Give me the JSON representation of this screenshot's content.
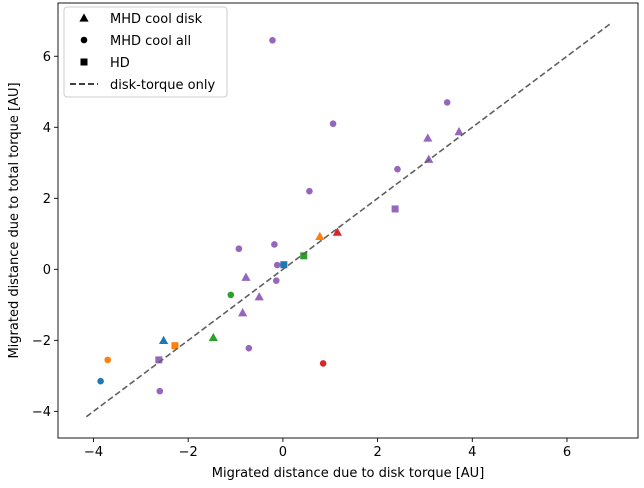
{
  "chart_data": {
    "type": "scatter",
    "xlabel": "Migrated distance due to disk torque [AU]",
    "ylabel": "Migrated distance due to total torque [AU]",
    "xlim": [
      -4.75,
      7.5
    ],
    "ylim": [
      -4.75,
      7.5
    ],
    "xticks": [
      -4,
      -2,
      0,
      2,
      4,
      6
    ],
    "yticks": [
      -4,
      -2,
      0,
      2,
      4,
      6
    ],
    "xtick_labels": [
      "−4",
      "−2",
      "0",
      "2",
      "4",
      "6"
    ],
    "ytick_labels": [
      "−4",
      "−2",
      "0",
      "2",
      "4",
      "6"
    ],
    "grid": false,
    "legend_position": "upper-left",
    "legend": [
      {
        "label": "MHD cool disk",
        "marker": "triangle"
      },
      {
        "label": "MHD cool all",
        "marker": "circle"
      },
      {
        "label": "HD",
        "marker": "square"
      },
      {
        "label": "disk-torque only",
        "marker": "dashed-line"
      }
    ],
    "reference_line": {
      "x": [
        -4.15,
        6.95
      ],
      "y": [
        -4.15,
        6.95
      ],
      "style": "dashed",
      "color": "#606060"
    },
    "points": [
      {
        "marker": "circle",
        "color": "#9467bd",
        "x": -0.22,
        "y": 6.45
      },
      {
        "marker": "circle",
        "color": "#9467bd",
        "x": 3.47,
        "y": 4.7
      },
      {
        "marker": "circle",
        "color": "#9467bd",
        "x": 1.06,
        "y": 4.1
      },
      {
        "marker": "circle",
        "color": "#9467bd",
        "x": 2.42,
        "y": 2.82
      },
      {
        "marker": "circle",
        "color": "#9467bd",
        "x": 0.56,
        "y": 2.2
      },
      {
        "marker": "circle",
        "color": "#9467bd",
        "x": -0.93,
        "y": 0.58
      },
      {
        "marker": "circle",
        "color": "#9467bd",
        "x": -0.18,
        "y": 0.7
      },
      {
        "marker": "circle",
        "color": "#9467bd",
        "x": -0.12,
        "y": 0.12
      },
      {
        "marker": "circle",
        "color": "#9467bd",
        "x": -0.14,
        "y": -0.32
      },
      {
        "marker": "circle",
        "color": "#9467bd",
        "x": -0.72,
        "y": -2.22
      },
      {
        "marker": "circle",
        "color": "#9467bd",
        "x": -2.6,
        "y": -3.43
      },
      {
        "marker": "circle",
        "color": "#2ca02c",
        "x": -1.1,
        "y": -0.72
      },
      {
        "marker": "circle",
        "color": "#ff7f0e",
        "x": -3.7,
        "y": -2.55
      },
      {
        "marker": "circle",
        "color": "#1f77b4",
        "x": -3.85,
        "y": -3.15
      },
      {
        "marker": "circle",
        "color": "#d62728",
        "x": 0.85,
        "y": -2.65
      },
      {
        "marker": "triangle",
        "color": "#9467bd",
        "x": 3.72,
        "y": 3.88
      },
      {
        "marker": "triangle",
        "color": "#9467bd",
        "x": 3.06,
        "y": 3.7
      },
      {
        "marker": "triangle",
        "color": "#9467bd",
        "x": 3.08,
        "y": 3.1
      },
      {
        "marker": "triangle",
        "color": "#9467bd",
        "x": -0.78,
        "y": -0.22
      },
      {
        "marker": "triangle",
        "color": "#9467bd",
        "x": -0.5,
        "y": -0.77
      },
      {
        "marker": "triangle",
        "color": "#9467bd",
        "x": -0.85,
        "y": -1.22
      },
      {
        "marker": "triangle",
        "color": "#d62728",
        "x": 1.15,
        "y": 1.05
      },
      {
        "marker": "triangle",
        "color": "#ff7f0e",
        "x": 0.78,
        "y": 0.93
      },
      {
        "marker": "triangle",
        "color": "#2ca02c",
        "x": -1.47,
        "y": -1.92
      },
      {
        "marker": "triangle",
        "color": "#1f77b4",
        "x": -2.52,
        "y": -2.0
      },
      {
        "marker": "square",
        "color": "#9467bd",
        "x": 2.37,
        "y": 1.7
      },
      {
        "marker": "square",
        "color": "#9467bd",
        "x": -2.62,
        "y": -2.55
      },
      {
        "marker": "square",
        "color": "#2ca02c",
        "x": 0.44,
        "y": 0.38
      },
      {
        "marker": "square",
        "color": "#1f77b4",
        "x": 0.02,
        "y": 0.13
      },
      {
        "marker": "square",
        "color": "#ff7f0e",
        "x": -2.28,
        "y": -2.15
      }
    ]
  }
}
